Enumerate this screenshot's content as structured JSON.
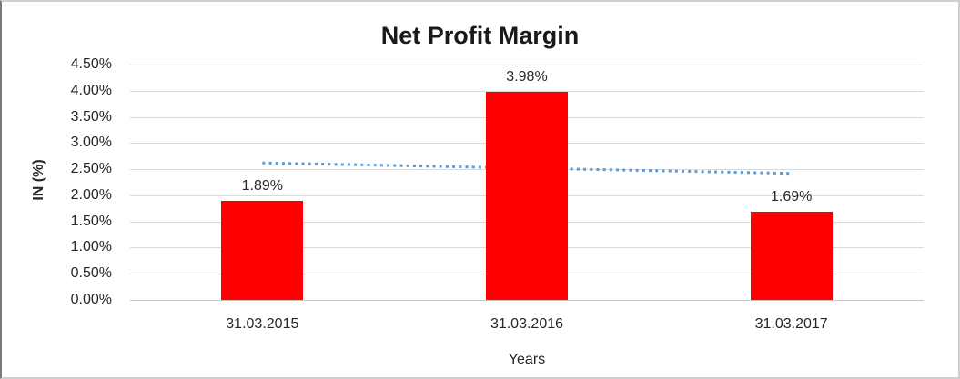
{
  "chart_data": {
    "type": "bar",
    "title": "Net Profit Margin",
    "xlabel": "Years",
    "ylabel": "IN (%)",
    "categories": [
      "31.03.2015",
      "31.03.2016",
      "31.03.2017"
    ],
    "values": [
      1.89,
      3.98,
      1.69
    ],
    "data_labels": [
      "1.89%",
      "3.98%",
      "1.69%"
    ],
    "y_ticks": [
      {
        "value": 0.0,
        "label": "0.00%"
      },
      {
        "value": 0.5,
        "label": "0.50%"
      },
      {
        "value": 1.0,
        "label": "1.00%"
      },
      {
        "value": 1.5,
        "label": "1.50%"
      },
      {
        "value": 2.0,
        "label": "2.00%"
      },
      {
        "value": 2.5,
        "label": "2.50%"
      },
      {
        "value": 3.0,
        "label": "3.00%"
      },
      {
        "value": 3.5,
        "label": "3.50%"
      },
      {
        "value": 4.0,
        "label": "4.00%"
      },
      {
        "value": 4.5,
        "label": "4.50%"
      }
    ],
    "ylim": [
      0,
      4.5
    ],
    "grid": true,
    "legend_visible": false,
    "bar_color": "#ff0000",
    "gridline_color": "#d9d9d9",
    "text_color": "#262626",
    "trendline": {
      "type": "linear",
      "style": "dotted",
      "color": "#5b9bd5",
      "start_value": 2.62,
      "end_value": 2.42,
      "start_category_index": 0,
      "end_category_index": 2
    }
  }
}
